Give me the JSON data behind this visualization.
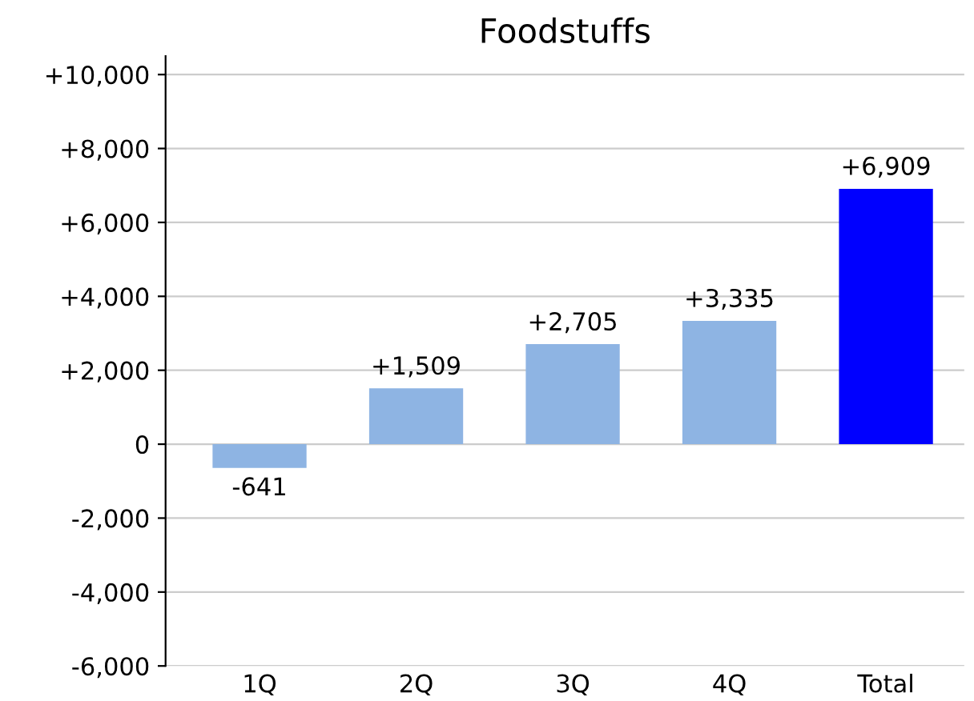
{
  "chart_data": {
    "type": "bar",
    "title": "Foodstuffs",
    "categories": [
      "1Q",
      "2Q",
      "3Q",
      "4Q",
      "Total"
    ],
    "values": [
      -641,
      1509,
      2705,
      3335,
      6909
    ],
    "colors": [
      "#8eb4e3",
      "#8eb4e3",
      "#8eb4e3",
      "#8eb4e3",
      "#0000ff"
    ],
    "value_labels": [
      "-641",
      "+1,509",
      "+2,705",
      "+3,335",
      "+6,909"
    ],
    "ylim": [
      -6000,
      10500
    ],
    "yticks": [
      {
        "value": -6000,
        "label": "-6,000"
      },
      {
        "value": -4000,
        "label": "-4,000"
      },
      {
        "value": -2000,
        "label": "-2,000"
      },
      0,
      {
        "value": 2000,
        "label": "+2,000"
      },
      {
        "value": 4000,
        "label": "+4,000"
      },
      {
        "value": 6000,
        "label": "+6,000"
      },
      {
        "value": 8000,
        "label": "+8,000"
      },
      {
        "value": 10000,
        "label": "+10,000"
      }
    ],
    "grid": "y"
  }
}
